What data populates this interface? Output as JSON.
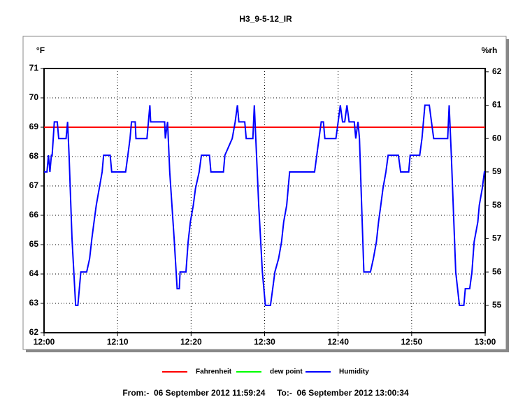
{
  "chart_data": {
    "type": "line",
    "title": "H3_9-5-12_IR",
    "y_label": "°F",
    "y2_label": "%rh",
    "footer": "From:-  06 September 2012 11:59:24     To:-  06 September 2012 13:00:34",
    "xlim": [
      0,
      60
    ],
    "xticks": [
      {
        "value": 0,
        "label": "12:00"
      },
      {
        "value": 10,
        "label": "12:10"
      },
      {
        "value": 20,
        "label": "12:20"
      },
      {
        "value": 30,
        "label": "12:30"
      },
      {
        "value": 40,
        "label": "12:40"
      },
      {
        "value": 50,
        "label": "12:50"
      },
      {
        "value": 60,
        "label": "13:00"
      }
    ],
    "ylim": [
      62,
      71
    ],
    "yticks": [
      62,
      63,
      64,
      65,
      66,
      67,
      68,
      69,
      70,
      71
    ],
    "y2lim": [
      54.18,
      62.1
    ],
    "y2ticks": [
      55,
      56,
      57,
      58,
      59,
      60,
      61,
      62
    ],
    "grid": true,
    "legend": "bottom",
    "series": [
      {
        "name": "Fahrenheit",
        "color": "#ff0000",
        "x": [
          0,
          60
        ],
        "values": [
          69,
          69
        ]
      },
      {
        "name": "dew point",
        "color": "#00ff00",
        "x": [],
        "values": []
      },
      {
        "name": "Humidity",
        "color": "#0000ff",
        "axis": "y2",
        "x": [
          0.0,
          0.4,
          0.6,
          0.8,
          1.0,
          1.1,
          1.4,
          1.8,
          2.0,
          3.0,
          3.2,
          3.4,
          3.8,
          4.3,
          4.6,
          4.8,
          5.0,
          5.8,
          6.2,
          6.5,
          6.8,
          7.1,
          7.5,
          7.9,
          8.1,
          9.0,
          9.2,
          11.1,
          11.4,
          11.7,
          11.9,
          12.4,
          12.5,
          14.0,
          14.2,
          14.4,
          14.5,
          16.4,
          16.5,
          16.8,
          17.1,
          17.7,
          18.1,
          18.4,
          18.5,
          19.3,
          19.6,
          19.9,
          20.3,
          20.6,
          21.1,
          21.4,
          22.5,
          22.7,
          24.4,
          24.6,
          25.6,
          26.0,
          26.3,
          26.5,
          27.3,
          27.5,
          28.4,
          28.6,
          28.8,
          29.2,
          29.7,
          30.1,
          30.8,
          31.1,
          31.4,
          31.9,
          32.3,
          32.6,
          33.0,
          33.2,
          33.4,
          36.8,
          37.4,
          37.7,
          38.0,
          38.2,
          39.7,
          40.0,
          40.3,
          40.6,
          40.9,
          41.2,
          41.5,
          42.2,
          42.4,
          42.7,
          42.9,
          43.2,
          43.5,
          44.4,
          44.8,
          45.2,
          45.5,
          45.8,
          46.1,
          46.5,
          46.8,
          48.2,
          48.5,
          49.6,
          49.8,
          51.1,
          51.4,
          51.8,
          52.4,
          52.7,
          53.0,
          54.9,
          55.1,
          55.4,
          56.0,
          56.5,
          57.1,
          57.3,
          57.9,
          58.2,
          58.5,
          59.0,
          59.2,
          59.6,
          59.9,
          60.0
        ],
        "values": [
          59.0,
          59.0,
          59.5,
          59.0,
          59.5,
          59.5,
          60.5,
          60.5,
          60.0,
          60.0,
          60.5,
          59.5,
          57.0,
          55.0,
          55.0,
          55.5,
          56.0,
          56.0,
          56.4,
          57.0,
          57.5,
          58.0,
          58.5,
          59.0,
          59.5,
          59.5,
          59.0,
          59.0,
          59.5,
          60.0,
          60.5,
          60.5,
          60.0,
          60.0,
          60.5,
          61.0,
          60.5,
          60.5,
          60.0,
          60.5,
          59.0,
          57.0,
          55.5,
          55.5,
          56.0,
          56.0,
          56.9,
          57.5,
          58.0,
          58.5,
          59.0,
          59.5,
          59.5,
          59.0,
          59.0,
          59.5,
          60.0,
          60.5,
          61.0,
          60.5,
          60.5,
          60.0,
          60.0,
          61.0,
          60.0,
          58.0,
          56.0,
          55.0,
          55.0,
          55.5,
          56.0,
          56.4,
          56.9,
          57.5,
          58.0,
          58.5,
          59.0,
          59.0,
          60.0,
          60.5,
          60.5,
          60.0,
          60.0,
          60.5,
          61.0,
          60.5,
          60.5,
          61.0,
          60.5,
          60.5,
          60.0,
          60.5,
          60.0,
          58.0,
          56.0,
          56.0,
          56.4,
          56.9,
          57.5,
          58.0,
          58.5,
          59.0,
          59.5,
          59.5,
          59.0,
          59.0,
          59.5,
          59.5,
          60.0,
          61.0,
          61.0,
          60.5,
          60.0,
          60.0,
          61.0,
          59.5,
          56.0,
          55.0,
          55.0,
          55.5,
          55.5,
          56.0,
          56.9,
          57.5,
          58.0,
          58.5,
          59.0,
          59.0
        ]
      }
    ]
  }
}
